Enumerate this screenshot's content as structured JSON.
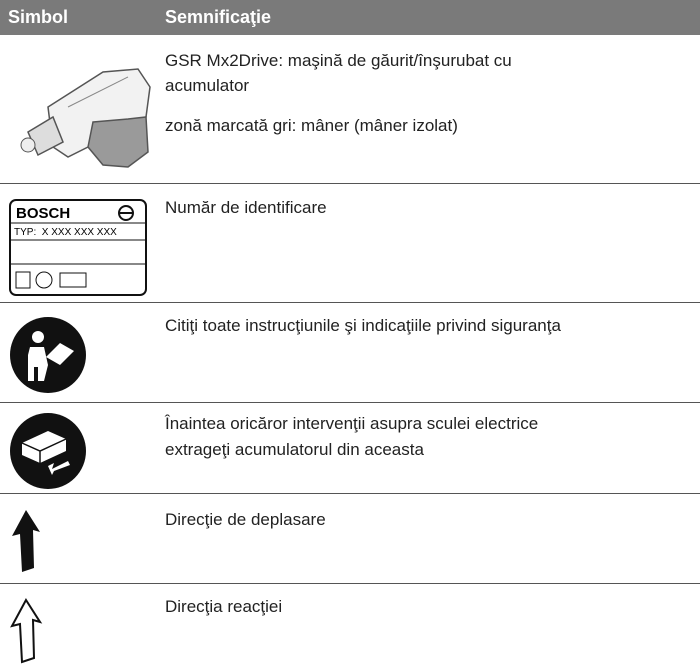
{
  "header": {
    "symbol": "Simbol",
    "meaning": "Semnificaţie"
  },
  "label": {
    "brand": "BOSCH",
    "type": "TYP:  X XXX XXX XXX"
  },
  "rows": [
    {
      "lines": [
        "GSR Mx2Drive: maşină de găurit/înşurubat cu",
        "acumulator",
        "zonă marcată gri: mâner (mâner izolat)"
      ]
    },
    {
      "lines": [
        "Număr de identificare"
      ]
    },
    {
      "lines": [
        "Citiţi toate instrucţiunile şi indicaţiile privind siguranţa"
      ]
    },
    {
      "lines": [
        "Înaintea oricăror intervenţii asupra sculei electrice",
        "extrageţi acumulatorul din aceasta"
      ]
    },
    {
      "lines": [
        "Direcţie de deplasare"
      ]
    },
    {
      "lines": [
        "Direcţia reacţiei"
      ]
    }
  ]
}
